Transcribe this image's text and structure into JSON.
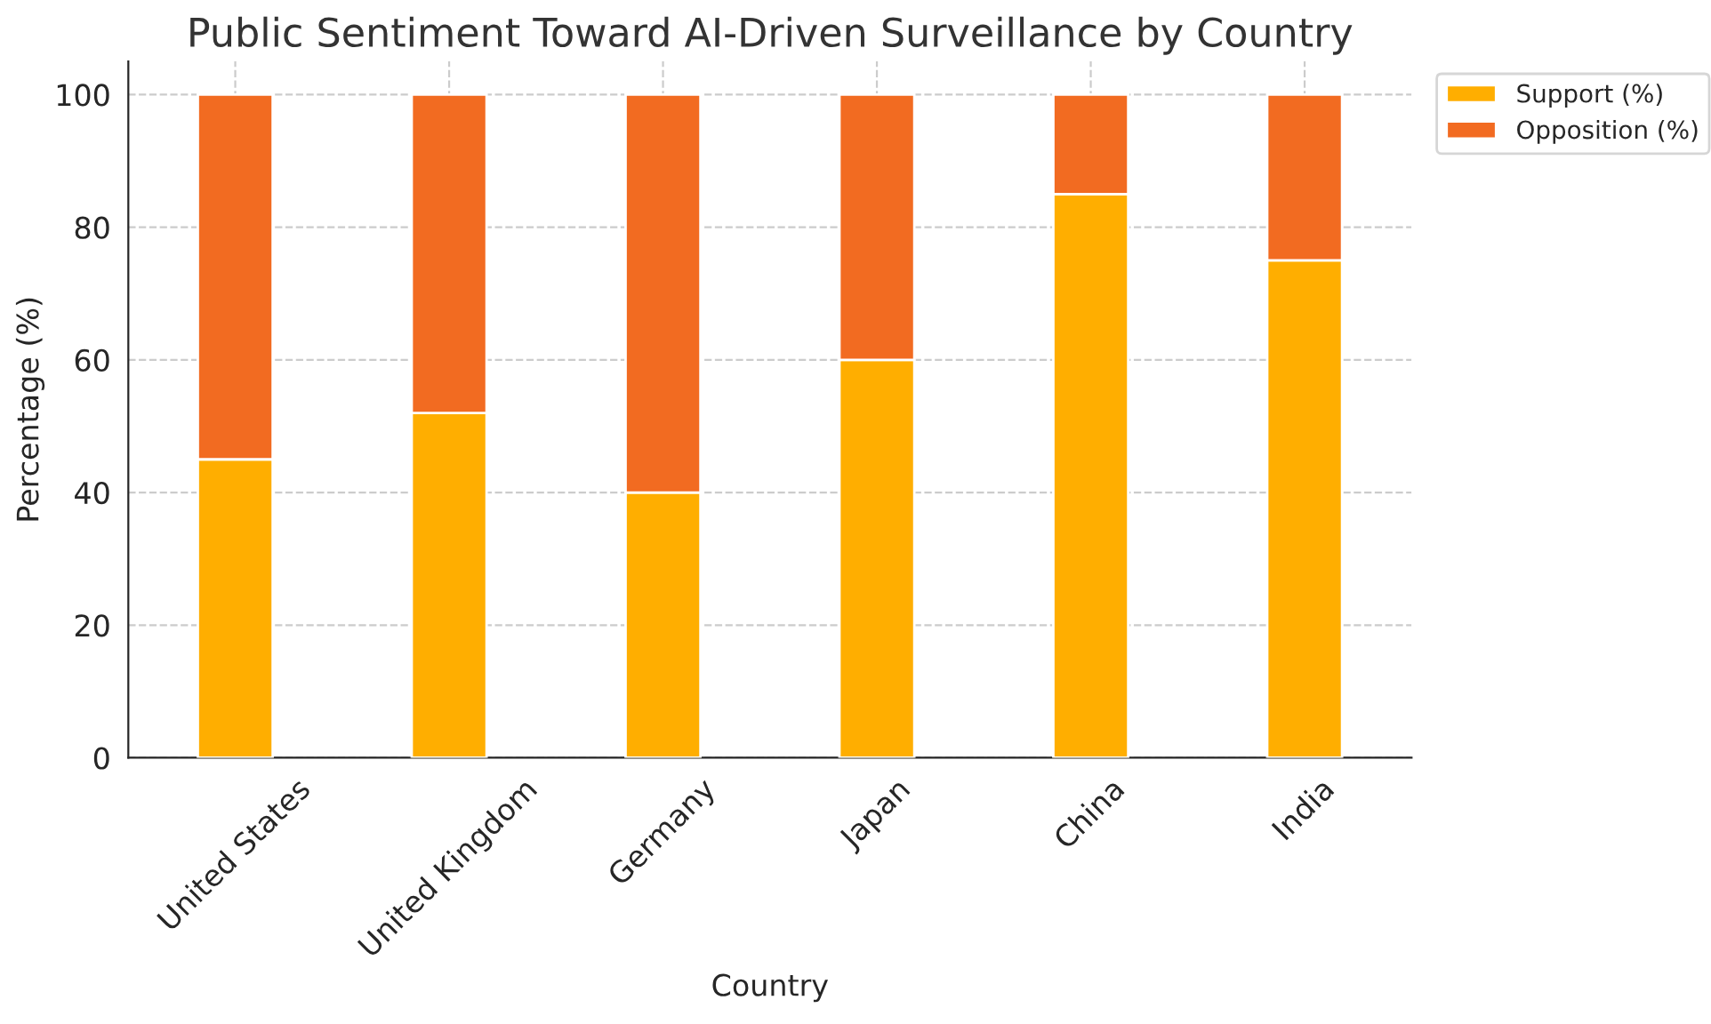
{
  "chart_data": {
    "type": "bar",
    "title": "Public Sentiment Toward AI-Driven Surveillance by Country",
    "xlabel": "Country",
    "ylabel": "Percentage (%)",
    "categories": [
      "United States",
      "United Kingdom",
      "Germany",
      "Japan",
      "China",
      "India"
    ],
    "series": [
      {
        "name": "Support (%)",
        "color": "#ffae00",
        "values": [
          45,
          52,
          40,
          60,
          85,
          75
        ]
      },
      {
        "name": "Opposition (%)",
        "color": "#f26b21",
        "values": [
          55,
          48,
          60,
          40,
          15,
          25
        ]
      }
    ],
    "stacked": true,
    "ylim": [
      0,
      105
    ],
    "yticks": [
      0,
      20,
      40,
      60,
      80,
      100
    ],
    "grid": true,
    "legend": "top right"
  }
}
